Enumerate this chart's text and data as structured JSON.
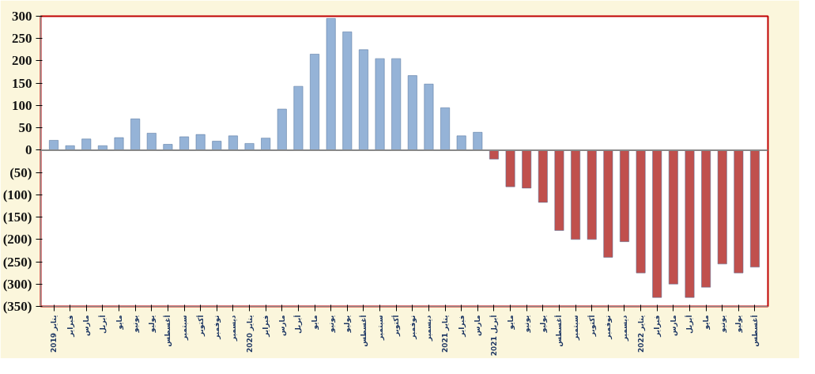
{
  "chart_data": {
    "type": "bar",
    "categories": [
      "يناير 2019",
      "فبراير",
      "مارس",
      "أبريل",
      "مايو",
      "يونيو",
      "يوليو",
      "أغسطس",
      "سبتمبر",
      "أكتوبر",
      "نوفمبر",
      "ديسمبر",
      "يناير 2020",
      "فبراير",
      "مارس",
      "أبريل",
      "مايو",
      "يونيو",
      "يوليو",
      "أغسطس",
      "سبتمبر",
      "أكتوبر",
      "نوفمبر",
      "ديسمبر",
      "يناير 2021",
      "فبراير",
      "مارس",
      "أبريل 2021",
      "مايو",
      "يونيو",
      "يوليو",
      "أغسطس",
      "سبتمبر",
      "أكتوبر",
      "نوفمبر",
      "ديسمبر",
      "يناير 2022",
      "فبراير",
      "مارس",
      "أبريل",
      "مايو",
      "يونيو",
      "يوليو",
      "أغسطس"
    ],
    "values": [
      22,
      10,
      25,
      10,
      28,
      70,
      38,
      13,
      30,
      35,
      20,
      32,
      15,
      27,
      92,
      143,
      215,
      295,
      265,
      225,
      205,
      205,
      167,
      148,
      95,
      32,
      40,
      -20,
      -82,
      -85,
      -117,
      -180,
      -200,
      -200,
      -240,
      -205,
      -275,
      -330,
      -300,
      -330,
      -307,
      -255,
      -275,
      -262
    ],
    "colors": [
      "#95b3d7",
      "#95b3d7",
      "#95b3d7",
      "#95b3d7",
      "#95b3d7",
      "#95b3d7",
      "#95b3d7",
      "#95b3d7",
      "#95b3d7",
      "#95b3d7",
      "#95b3d7",
      "#95b3d7",
      "#95b3d7",
      "#95b3d7",
      "#95b3d7",
      "#95b3d7",
      "#95b3d7",
      "#95b3d7",
      "#95b3d7",
      "#95b3d7",
      "#95b3d7",
      "#95b3d7",
      "#95b3d7",
      "#95b3d7",
      "#95b3d7",
      "#95b3d7",
      "#95b3d7",
      "#c0504d",
      "#c0504d",
      "#c0504d",
      "#c0504d",
      "#c0504d",
      "#c0504d",
      "#c0504d",
      "#c0504d",
      "#c0504d",
      "#c0504d",
      "#c0504d",
      "#c0504d",
      "#c0504d",
      "#c0504d",
      "#c0504d",
      "#c0504d",
      "#c0504d"
    ],
    "ylim": [
      -350,
      300
    ],
    "yticks": [
      300,
      250,
      200,
      150,
      100,
      50,
      0,
      {
        "value": -50,
        "label": "(50)"
      },
      {
        "value": -100,
        "label": "(100)"
      },
      {
        "value": -150,
        "label": "(150)"
      },
      {
        "value": -200,
        "label": "(200)"
      },
      {
        "value": -250,
        "label": "(250)"
      },
      {
        "value": -300,
        "label": "(300)"
      },
      {
        "value": -350,
        "label": "(350)"
      }
    ],
    "ref_lines": [
      {
        "axis": "y",
        "value": 0,
        "color": "#888888"
      }
    ]
  }
}
